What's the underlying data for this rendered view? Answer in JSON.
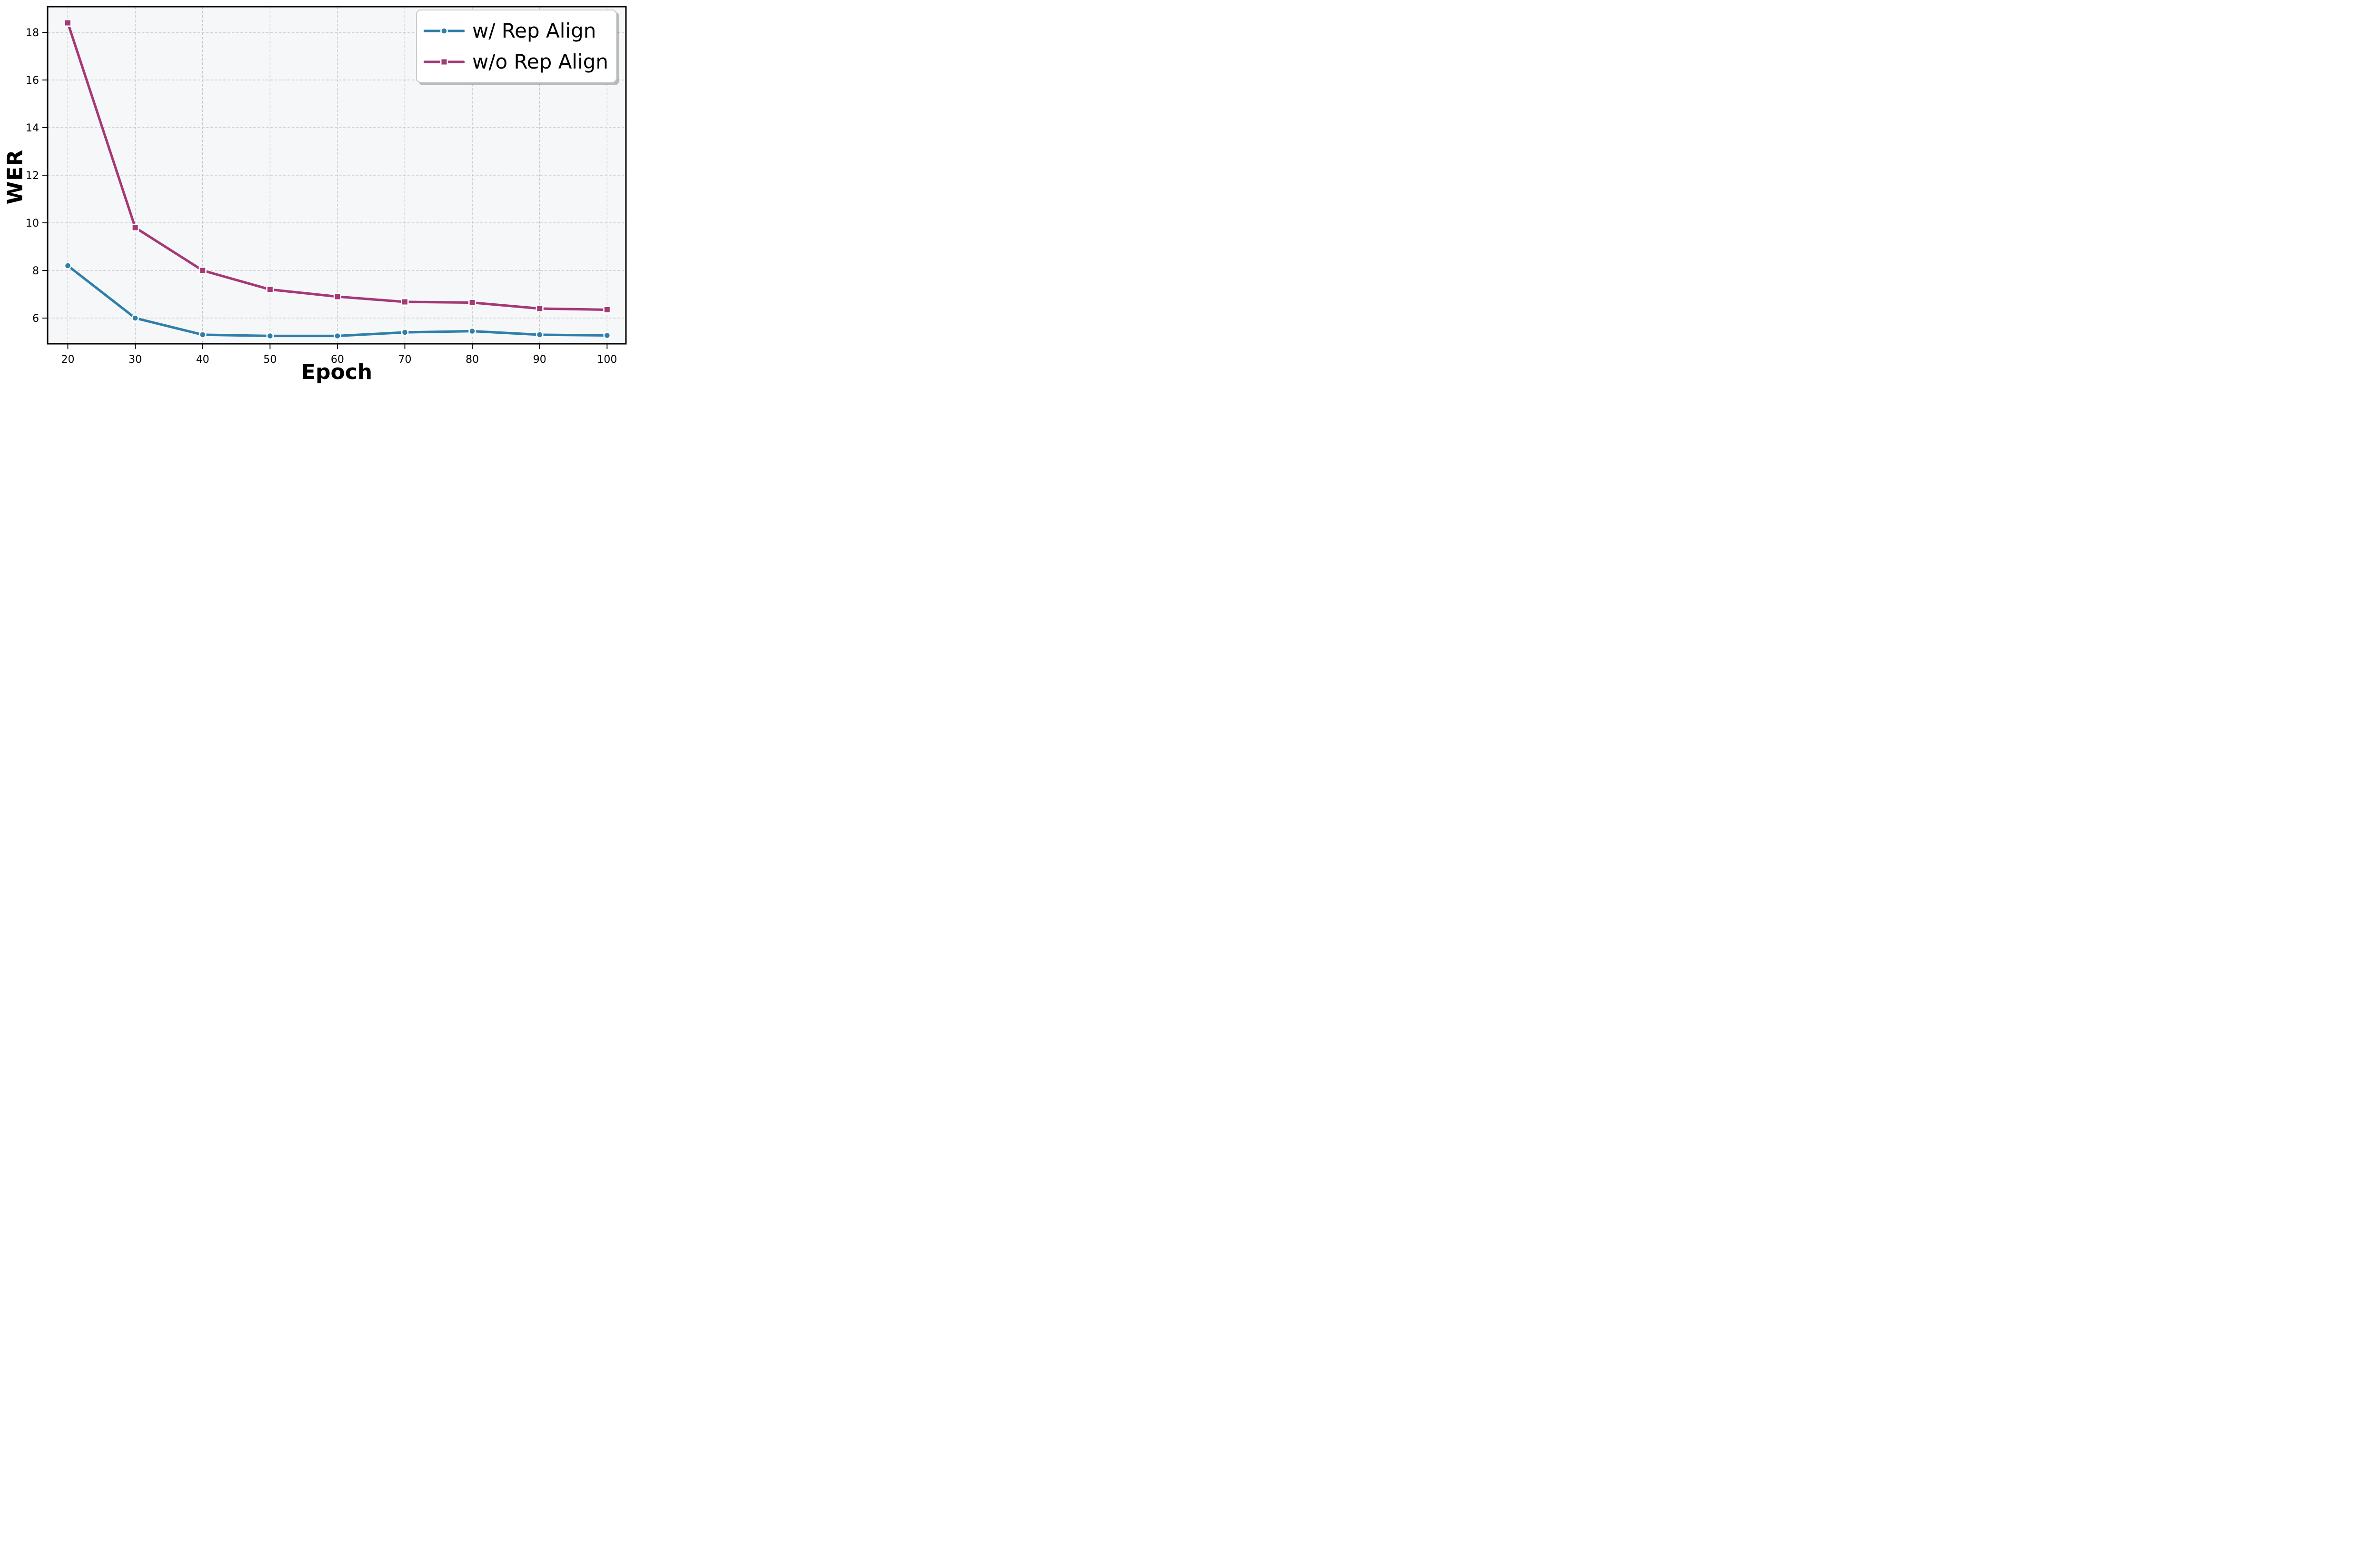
{
  "figure": {
    "background": "#ffffff",
    "plot_background": "#f6f7f9",
    "grid_color": "#c3c3c3",
    "spine_color": "#000000",
    "tick_color": "#000000",
    "legend_border_color": "#cbcbcb",
    "legend_background": "#ffffff"
  },
  "chart_data": {
    "type": "line",
    "title": "",
    "xlabel": "Epoch",
    "ylabel": "WER",
    "x": [
      20,
      30,
      40,
      50,
      60,
      70,
      80,
      90,
      100
    ],
    "xtick_labels": [
      "20",
      "30",
      "40",
      "50",
      "60",
      "70",
      "80",
      "90",
      "100"
    ],
    "yticks": [
      6,
      8,
      10,
      12,
      14,
      16,
      18
    ],
    "ytick_labels": [
      "6",
      "8",
      "10",
      "12",
      "14",
      "16",
      "18"
    ],
    "xlim": [
      17.0,
      102.8
    ],
    "ylim": [
      4.92,
      19.08
    ],
    "grid": true,
    "grid_style": "dashed",
    "legend_position": "upper right",
    "series": [
      {
        "name": "w/ Rep Align",
        "color": "#2E7FA9",
        "marker": "circle",
        "marker_edge_color": "#ffffff",
        "values": [
          8.2,
          6.0,
          5.3,
          5.25,
          5.25,
          5.4,
          5.45,
          5.3,
          5.27
        ]
      },
      {
        "name": "w/o Rep Align",
        "color": "#A53876",
        "marker": "square",
        "marker_edge_color": "#ffffff",
        "values": [
          18.4,
          9.8,
          8.0,
          7.2,
          6.9,
          6.68,
          6.65,
          6.4,
          6.35
        ]
      }
    ]
  }
}
